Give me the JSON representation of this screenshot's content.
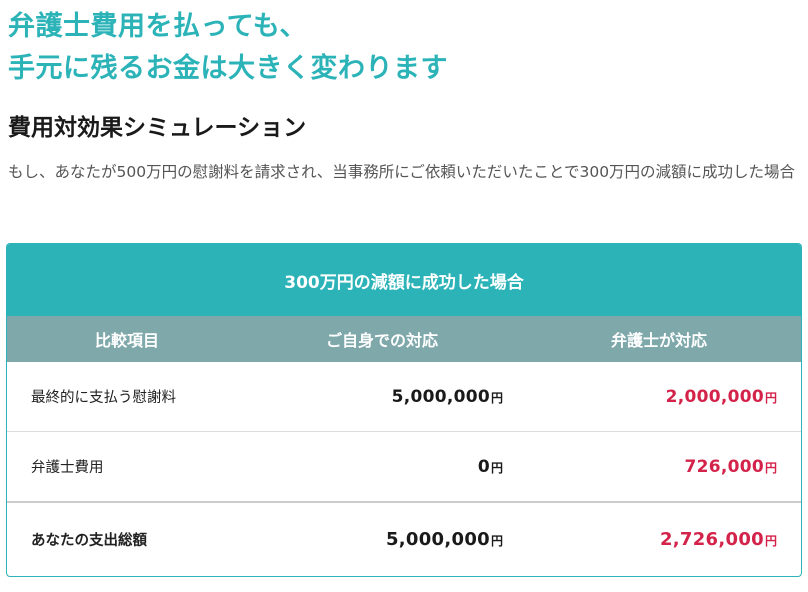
{
  "headline": {
    "line1": "弁護士費用を払っても、",
    "line2": "手元に残るお金は大きく変わります"
  },
  "section_title": "費用対効果シミュレーション",
  "description": "もし、あなたが500万円の慰謝料を請求され、当事務所にご依頼いただいたことで300万円の減額に成功した場合",
  "table": {
    "caption": "300万円の減額に成功した場合",
    "headers": {
      "item": "比較項目",
      "self": "ご自身での対応",
      "lawyer": "弁護士が対応"
    },
    "unit": "円",
    "rows": [
      {
        "item": "最終的に支払う慰謝料",
        "self": "5,000,000",
        "lawyer": "2,000,000"
      },
      {
        "item": "弁護士費用",
        "self": "0",
        "lawyer": "726,000"
      },
      {
        "item": "あなたの支出総額",
        "self": "5,000,000",
        "lawyer": "2,726,000"
      }
    ]
  },
  "colors": {
    "accent": "#2bb3b8",
    "header_bg": "#7fa8ab",
    "highlight": "#d4234a"
  }
}
